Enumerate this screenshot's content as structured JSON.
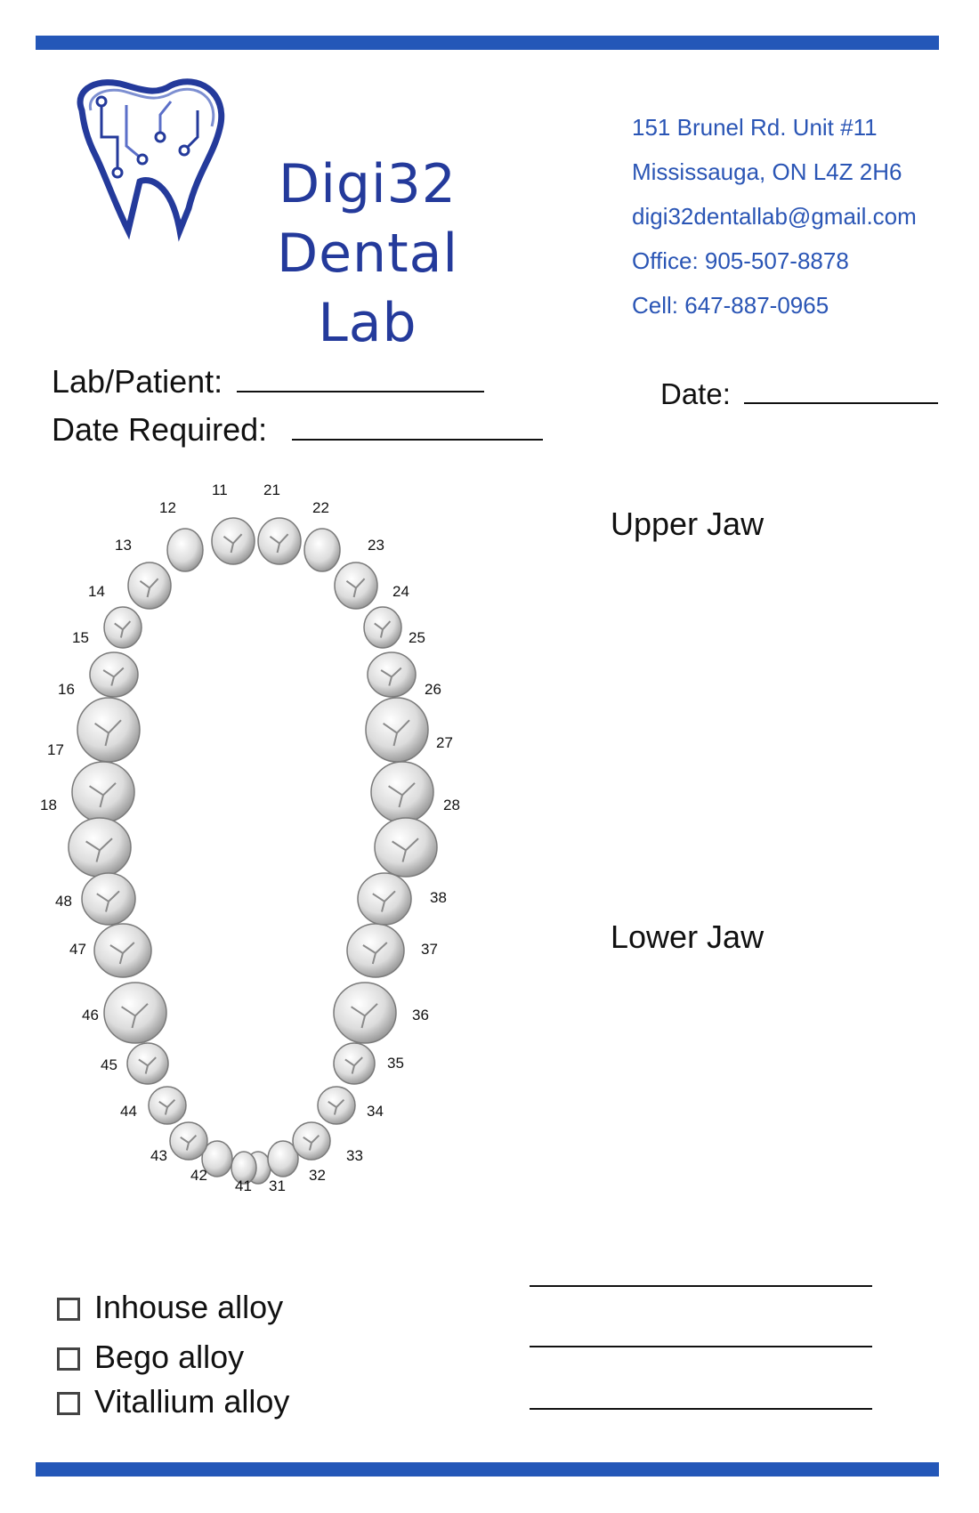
{
  "brand": {
    "name_line1": "Digi32 Dental",
    "name_line2": "Lab",
    "color": "#243a9b"
  },
  "contact": {
    "address": "151 Brunel Rd. Unit #11",
    "city": "Mississauga, ON L4Z 2H6",
    "email": "digi32dentallab@gmail.com",
    "office": "Office: 905-507-8878",
    "cell": "Cell: 647-887-0965",
    "color": "#2a55b5"
  },
  "form": {
    "lab_patient_label": "Lab/Patient:",
    "date_required_label": "Date Required:",
    "date_label": "Date:"
  },
  "jaws": {
    "upper_label": "Upper Jaw",
    "lower_label": "Lower Jaw"
  },
  "tooth_chart": {
    "upper": [
      "11",
      "12",
      "13",
      "14",
      "15",
      "16",
      "17",
      "18",
      "21",
      "22",
      "23",
      "24",
      "25",
      "26",
      "27",
      "28"
    ],
    "lower": [
      "31",
      "32",
      "33",
      "34",
      "35",
      "36",
      "37",
      "38",
      "41",
      "42",
      "43",
      "44",
      "45",
      "46",
      "47",
      "48"
    ]
  },
  "alloys": [
    {
      "label": "Inhouse alloy",
      "checked": false
    },
    {
      "label": "Bego alloy",
      "checked": false
    },
    {
      "label": "Vitallium alloy",
      "checked": false
    }
  ],
  "accent_color": "#2457b8"
}
